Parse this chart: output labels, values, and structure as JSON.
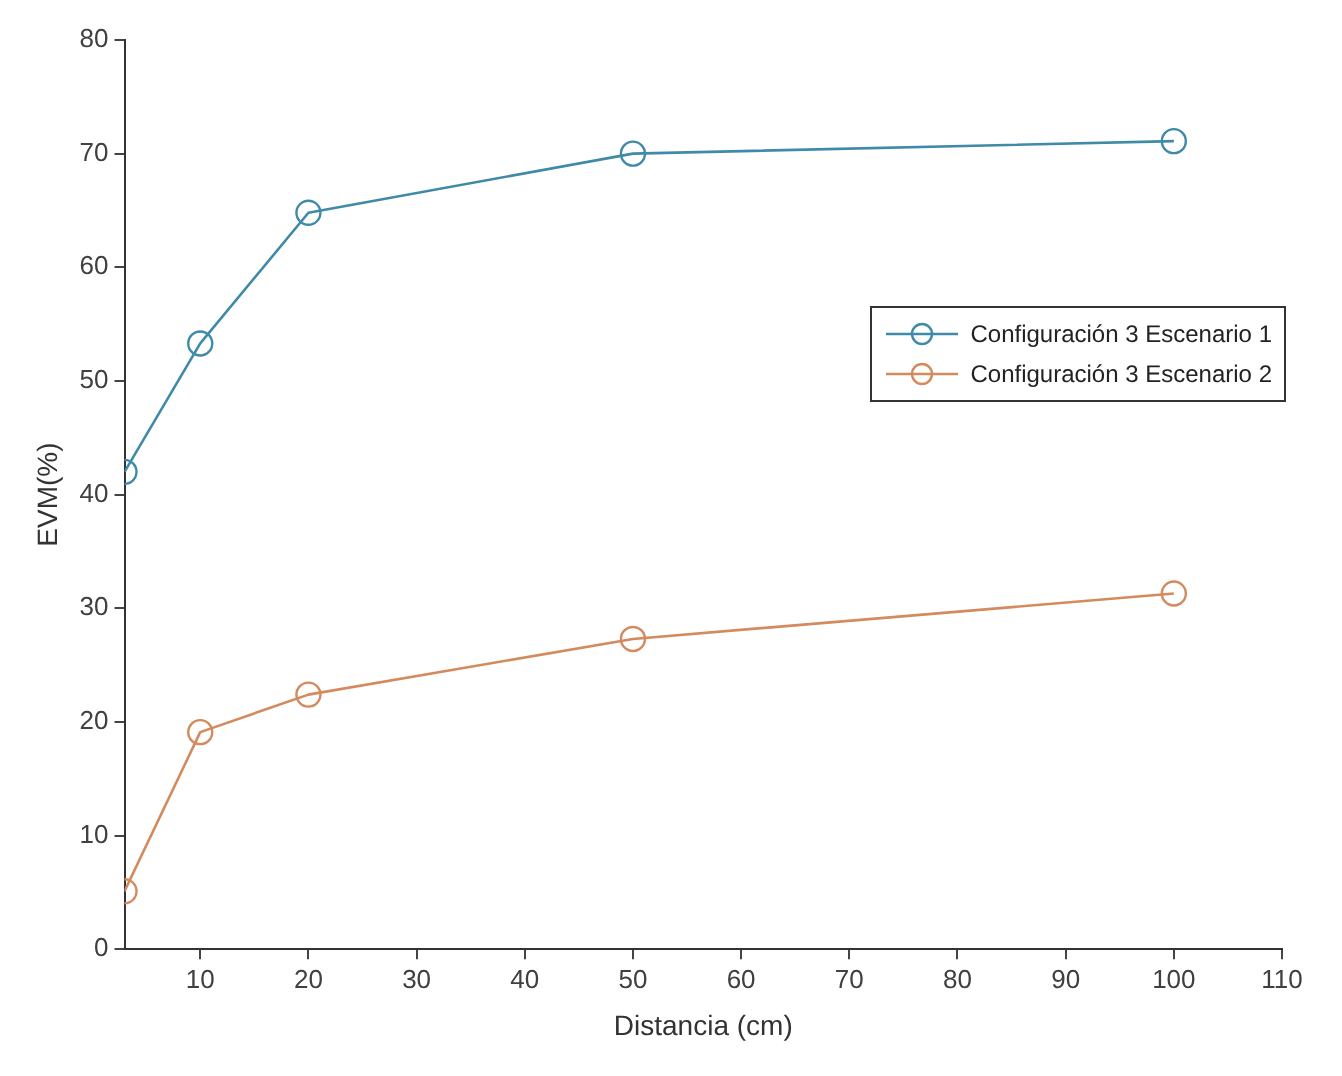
{
  "chart_data": {
    "type": "line",
    "xlabel": "Distancia (cm)",
    "ylabel": "EVM(%)",
    "x": [
      3,
      10,
      20,
      50,
      100
    ],
    "series": [
      {
        "name": "Configuración 3 Escenario 1",
        "color": "#3f8aa8",
        "values": [
          42,
          53.3,
          64.8,
          70,
          71.1
        ]
      },
      {
        "name": "Configuración 3 Escenario 2",
        "color": "#d38a5c",
        "values": [
          5.1,
          19.1,
          22.4,
          27.3,
          31.3
        ]
      }
    ],
    "xlim": [
      3,
      110
    ],
    "xticks": [
      10,
      20,
      30,
      40,
      50,
      60,
      70,
      80,
      90,
      100,
      110
    ],
    "ylim": [
      0,
      80
    ],
    "yticks": [
      0,
      10,
      20,
      30,
      40,
      50,
      60,
      70,
      80
    ],
    "grid": false,
    "legend": "right",
    "marker": "circle",
    "line_style": "solid"
  }
}
